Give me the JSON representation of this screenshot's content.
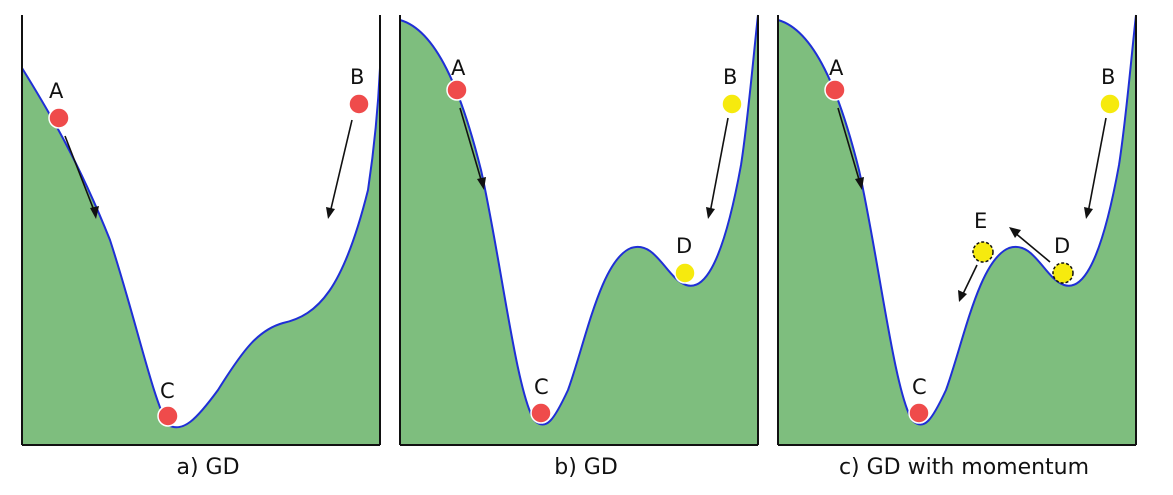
{
  "colors": {
    "fill": "#7ebe7e",
    "curve": "#1f2fd6",
    "axis": "#111111",
    "ball_red": "#ef4b4b",
    "ball_yellow": "#f6ea0e",
    "arrow": "#111111"
  },
  "panels": [
    {
      "caption": "a) GD",
      "labels": {
        "A": "A",
        "B": "B",
        "C": "C"
      }
    },
    {
      "caption": "b) GD",
      "labels": {
        "A": "A",
        "B": "B",
        "C": "C",
        "D": "D"
      }
    },
    {
      "caption": "c) GD with momentum",
      "labels": {
        "A": "A",
        "B": "B",
        "C": "C",
        "D": "D",
        "E": "E"
      }
    }
  ]
}
